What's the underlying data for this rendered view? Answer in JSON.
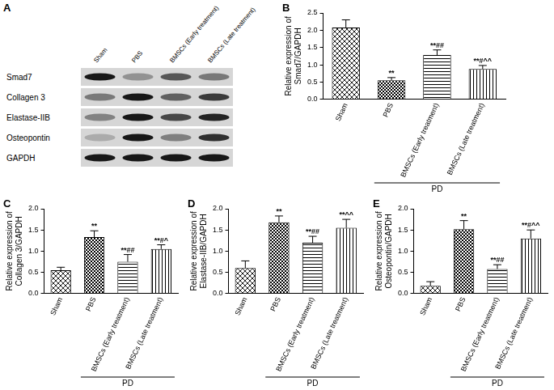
{
  "blot": {
    "panel": "A",
    "lanes": [
      "Sham",
      "PBS",
      "BMSCs (Early treatment)",
      "BMSCs (Late treatment)"
    ],
    "rows": [
      "Smad7",
      "Collagen 3",
      "Elastase-IIB",
      "Osteopontin",
      "GAPDH"
    ]
  },
  "chart_data": [
    {
      "type": "bar",
      "panel": "B",
      "y_label": [
        "Relative expression of",
        "Smad7/GAPDH"
      ],
      "categories": [
        "Sham",
        "PBS",
        "BMSCs (Early treatment)",
        "BMSCs (Late treatment)"
      ],
      "values": [
        2.08,
        0.55,
        1.28,
        0.88
      ],
      "errors": [
        0.22,
        0.08,
        0.15,
        0.1
      ],
      "annotations": [
        null,
        "**",
        "**##",
        "**#^^"
      ],
      "group": {
        "label": "PD",
        "members": [
          "PBS",
          "BMSCs (Early treatment)",
          "BMSCs (Late treatment)"
        ]
      },
      "color": "#000000",
      "ylim": [
        0,
        2.5
      ],
      "yticks": [
        {
          "value": 0,
          "label": "0.0"
        },
        0.5,
        {
          "value": 1,
          "label": "1.0"
        },
        1.5,
        {
          "value": 2,
          "label": "2.0"
        },
        2.5
      ],
      "grid": false
    },
    {
      "type": "bar",
      "panel": "C",
      "y_label": [
        "Relative expression of",
        "Collagen 3/GAPDH"
      ],
      "categories": [
        "Sham",
        "PBS",
        "BMSCs (Early treatment)",
        "BMSCs (Late treatment)"
      ],
      "values": [
        0.55,
        1.33,
        0.75,
        1.05
      ],
      "errors": [
        0.07,
        0.15,
        0.17,
        0.1
      ],
      "annotations": [
        null,
        "**",
        "**##",
        "**#^"
      ],
      "group": {
        "label": "PD",
        "members": [
          "PBS",
          "BMSCs (Early treatment)",
          "BMSCs (Late treatment)"
        ]
      },
      "color": "#000000",
      "ylim": [
        0,
        2
      ],
      "yticks": [
        {
          "value": 0,
          "label": "0.0"
        },
        0.5,
        {
          "value": 1,
          "label": "1.0"
        },
        1.5,
        {
          "value": 2,
          "label": "2.0"
        }
      ],
      "grid": false
    },
    {
      "type": "bar",
      "panel": "D",
      "y_label": [
        "Relative expression of",
        "Elastase-IIB/GAPDH"
      ],
      "categories": [
        "Sham",
        "PBS",
        "BMSCs (Early treatment)",
        "BMSCs (Late treatment)"
      ],
      "values": [
        0.6,
        1.68,
        1.2,
        1.55
      ],
      "errors": [
        0.17,
        0.15,
        0.15,
        0.2
      ],
      "annotations": [
        null,
        "**",
        "**##",
        "**^^"
      ],
      "group": {
        "label": "PD",
        "members": [
          "PBS",
          "BMSCs (Early treatment)",
          "BMSCs (Late treatment)"
        ]
      },
      "color": "#000000",
      "ylim": [
        0,
        2
      ],
      "yticks": [
        {
          "value": 0,
          "label": "0.0"
        },
        0.5,
        {
          "value": 1,
          "label": "1.0"
        },
        1.5,
        {
          "value": 2,
          "label": "2.0"
        }
      ],
      "grid": false
    },
    {
      "type": "bar",
      "panel": "E",
      "y_label": [
        "Relative expression of",
        "Osteopontin/GAPDH"
      ],
      "categories": [
        "Sham",
        "PBS",
        "BMSCs (Early treatment)",
        "BMSCs (Late treatment)"
      ],
      "values": [
        0.18,
        1.52,
        0.58,
        1.3
      ],
      "errors": [
        0.1,
        0.2,
        0.1,
        0.2
      ],
      "annotations": [
        null,
        "**",
        "**##",
        "**#^^"
      ],
      "group": {
        "label": "PD",
        "members": [
          "PBS",
          "BMSCs (Early treatment)",
          "BMSCs (Late treatment)"
        ]
      },
      "color": "#000000",
      "ylim": [
        0,
        2
      ],
      "yticks": [
        {
          "value": 0,
          "label": "0.0"
        },
        0.5,
        {
          "value": 1,
          "label": "1.0"
        },
        1.5,
        {
          "value": 2,
          "label": "2.0"
        }
      ],
      "grid": false
    }
  ]
}
